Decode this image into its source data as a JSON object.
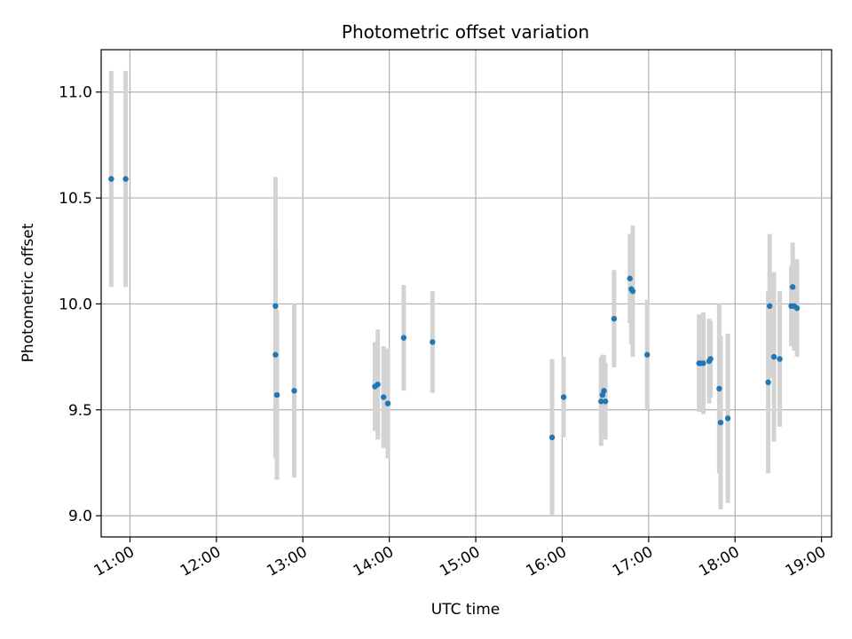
{
  "chart_data": {
    "type": "scatter",
    "title": "Photometric offset variation",
    "xlabel": "UTC time",
    "ylabel": "Photometric offset",
    "x_is_time": true,
    "xlim": [
      "10:40",
      "19:07"
    ],
    "ylim": [
      8.9,
      11.2
    ],
    "x_ticks": [
      "11:00",
      "12:00",
      "13:00",
      "14:00",
      "15:00",
      "16:00",
      "17:00",
      "18:00",
      "19:00"
    ],
    "y_ticks": [
      9.0,
      9.5,
      10.0,
      10.5,
      11.0
    ],
    "y_tick_labels": [
      "9.0",
      "9.5",
      "10.0",
      "10.5",
      "11.0"
    ],
    "grid": true,
    "colors": {
      "point": "#1f77b4",
      "errorbar": "#d3d3d3",
      "grid": "#b0b0b0",
      "axes": "#000000"
    },
    "points": [
      {
        "t": "10:47",
        "y": 10.59,
        "err": 0.51
      },
      {
        "t": "10:57",
        "y": 10.59,
        "err": 0.51
      },
      {
        "t": "12:41",
        "y": 9.99,
        "err": 0.61
      },
      {
        "t": "12:41",
        "y": 9.76,
        "err": 0.49
      },
      {
        "t": "12:42",
        "y": 9.57,
        "err": 0.4
      },
      {
        "t": "12:54",
        "y": 9.59,
        "err": 0.41
      },
      {
        "t": "13:50",
        "y": 9.61,
        "err": 0.21
      },
      {
        "t": "13:52",
        "y": 9.62,
        "err": 0.26
      },
      {
        "t": "13:56",
        "y": 9.56,
        "err": 0.24
      },
      {
        "t": "13:59",
        "y": 9.53,
        "err": 0.26
      },
      {
        "t": "14:10",
        "y": 9.84,
        "err": 0.25
      },
      {
        "t": "14:30",
        "y": 9.82,
        "err": 0.24
      },
      {
        "t": "15:53",
        "y": 9.37,
        "err": 0.37
      },
      {
        "t": "16:01",
        "y": 9.56,
        "err": 0.19
      },
      {
        "t": "16:27",
        "y": 9.54,
        "err": 0.21
      },
      {
        "t": "16:28",
        "y": 9.57,
        "err": 0.19
      },
      {
        "t": "16:29",
        "y": 9.59,
        "err": 0.17
      },
      {
        "t": "16:30",
        "y": 9.54,
        "err": 0.18
      },
      {
        "t": "16:36",
        "y": 9.93,
        "err": 0.23
      },
      {
        "t": "16:47",
        "y": 10.12,
        "err": 0.21
      },
      {
        "t": "16:48",
        "y": 10.07,
        "err": 0.26
      },
      {
        "t": "16:49",
        "y": 10.06,
        "err": 0.31
      },
      {
        "t": "16:59",
        "y": 9.76,
        "err": 0.26
      },
      {
        "t": "17:35",
        "y": 9.72,
        "err": 0.23
      },
      {
        "t": "17:36",
        "y": 9.72,
        "err": 0.23
      },
      {
        "t": "17:38",
        "y": 9.72,
        "err": 0.24
      },
      {
        "t": "17:42",
        "y": 9.73,
        "err": 0.2
      },
      {
        "t": "17:43",
        "y": 9.74,
        "err": 0.18
      },
      {
        "t": "17:49",
        "y": 9.6,
        "err": 0.4
      },
      {
        "t": "17:50",
        "y": 9.44,
        "err": 0.41
      },
      {
        "t": "17:55",
        "y": 9.46,
        "err": 0.4
      },
      {
        "t": "18:23",
        "y": 9.63,
        "err": 0.43
      },
      {
        "t": "18:24",
        "y": 9.99,
        "err": 0.34
      },
      {
        "t": "18:27",
        "y": 9.75,
        "err": 0.4
      },
      {
        "t": "18:31",
        "y": 9.74,
        "err": 0.32
      },
      {
        "t": "18:39",
        "y": 9.99,
        "err": 0.19
      },
      {
        "t": "18:40",
        "y": 10.08,
        "err": 0.21
      },
      {
        "t": "18:41",
        "y": 9.99,
        "err": 0.21
      },
      {
        "t": "18:43",
        "y": 9.98,
        "err": 0.23
      }
    ]
  }
}
